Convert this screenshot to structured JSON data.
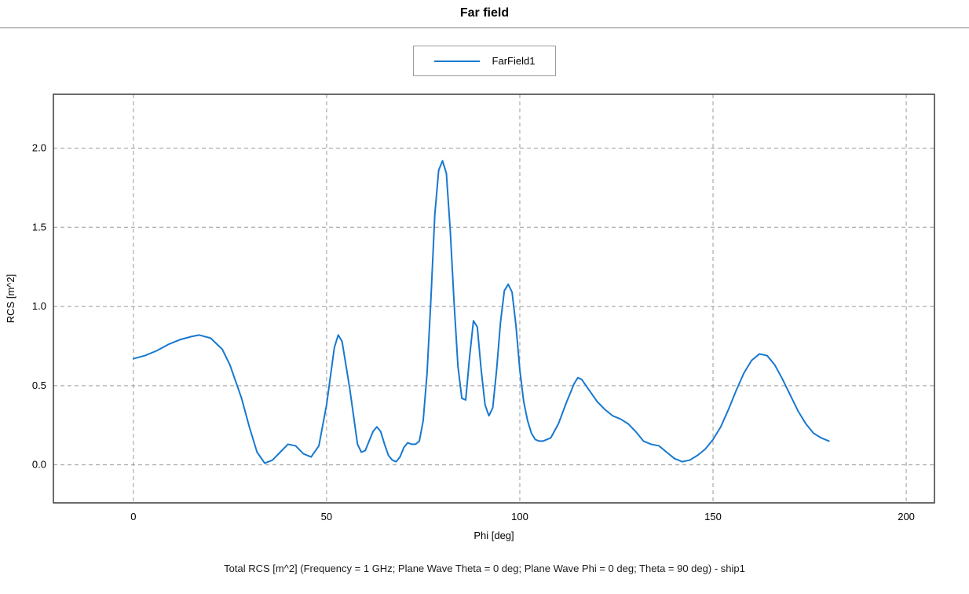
{
  "header": {
    "title": "Far field"
  },
  "legend": {
    "items": [
      {
        "label": "FarField1",
        "color": "#1878cf"
      }
    ]
  },
  "axes": {
    "x_label": "Phi [deg]",
    "y_label": "RCS [m^2]"
  },
  "caption": "Total RCS [m^2] (Frequency = 1 GHz; Plane Wave Theta = 0 deg; Plane Wave Phi = 0 deg; Theta = 90 deg) - ship1",
  "chart_data": {
    "type": "line",
    "title": "Far field",
    "xlabel": "Phi [deg]",
    "ylabel": "RCS [m^2]",
    "xlim": [
      -20.7,
      207.3
    ],
    "ylim": [
      -0.24,
      2.34
    ],
    "xticks": [
      0,
      50,
      100,
      150,
      200
    ],
    "yticks": [
      0.0,
      0.5,
      1.0,
      1.5,
      2.0
    ],
    "grid": "dashed",
    "legend_position": "top-center",
    "frame_color": "#3a3a3a",
    "grid_color": "#9b9b9b",
    "series": [
      {
        "name": "FarField1",
        "color": "#1878cf",
        "x": [
          0,
          3,
          6,
          9,
          12,
          15,
          17,
          20,
          23,
          25,
          28,
          30,
          32,
          34,
          36,
          38,
          40,
          42,
          44,
          46,
          48,
          50,
          52,
          53,
          54,
          56,
          58,
          59,
          60,
          61,
          62,
          63,
          64,
          65,
          66,
          67,
          68,
          69,
          70,
          71,
          72,
          73,
          74,
          75,
          76,
          77,
          78,
          79,
          80,
          81,
          82,
          83,
          84,
          85,
          86,
          87,
          88,
          89,
          90,
          91,
          92,
          93,
          94,
          95,
          96,
          97,
          98,
          99,
          100,
          101,
          102,
          103,
          104,
          105,
          106,
          108,
          110,
          112,
          114,
          115,
          116,
          118,
          120,
          122,
          124,
          126,
          128,
          130,
          132,
          134,
          136,
          138,
          140,
          142,
          144,
          146,
          148,
          150,
          152,
          154,
          156,
          158,
          160,
          162,
          164,
          166,
          168,
          170,
          172,
          174,
          176,
          178,
          180
        ],
        "y": [
          0.67,
          0.69,
          0.72,
          0.76,
          0.79,
          0.81,
          0.82,
          0.8,
          0.73,
          0.63,
          0.42,
          0.24,
          0.08,
          0.01,
          0.03,
          0.08,
          0.13,
          0.12,
          0.07,
          0.05,
          0.12,
          0.38,
          0.74,
          0.82,
          0.78,
          0.48,
          0.13,
          0.08,
          0.09,
          0.15,
          0.21,
          0.24,
          0.21,
          0.13,
          0.06,
          0.03,
          0.02,
          0.05,
          0.11,
          0.14,
          0.13,
          0.13,
          0.15,
          0.28,
          0.58,
          1.05,
          1.58,
          1.86,
          1.92,
          1.84,
          1.48,
          1.02,
          0.62,
          0.42,
          0.41,
          0.68,
          0.91,
          0.87,
          0.6,
          0.38,
          0.31,
          0.36,
          0.6,
          0.9,
          1.1,
          1.14,
          1.09,
          0.88,
          0.6,
          0.4,
          0.28,
          0.2,
          0.16,
          0.15,
          0.15,
          0.17,
          0.26,
          0.39,
          0.51,
          0.55,
          0.54,
          0.47,
          0.4,
          0.35,
          0.31,
          0.29,
          0.26,
          0.21,
          0.15,
          0.13,
          0.12,
          0.08,
          0.04,
          0.02,
          0.03,
          0.06,
          0.1,
          0.16,
          0.24,
          0.35,
          0.47,
          0.58,
          0.66,
          0.7,
          0.69,
          0.63,
          0.54,
          0.44,
          0.34,
          0.26,
          0.2,
          0.17,
          0.15
        ]
      }
    ]
  }
}
